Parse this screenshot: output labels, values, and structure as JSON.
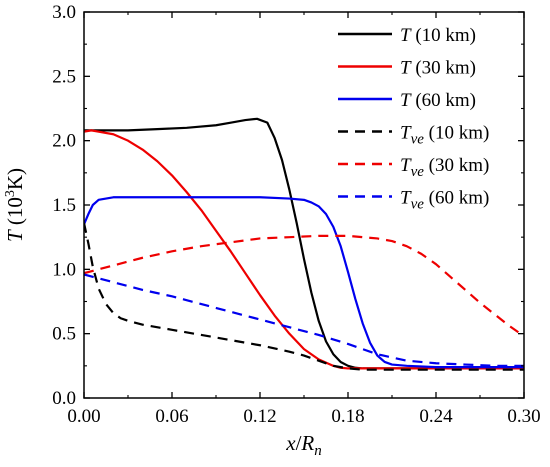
{
  "chart_data": {
    "type": "line",
    "xlabel": {
      "var": "x",
      "sep": "/",
      "den": "R",
      "den_sub": "n"
    },
    "ylabel": {
      "var": "T",
      "unit": " (10",
      "exp": "3",
      "unit_end": "K)"
    },
    "xlim": [
      0.0,
      0.3
    ],
    "ylim": [
      0.0,
      3.0
    ],
    "xticks": [
      0.0,
      0.06,
      0.12,
      0.18,
      0.24,
      0.3
    ],
    "xtick_labels": [
      "0.00",
      "0.06",
      "0.12",
      "0.18",
      "0.24",
      "0.30"
    ],
    "yticks": [
      0.0,
      0.5,
      1.0,
      1.5,
      2.0,
      2.5,
      3.0
    ],
    "ytick_labels": [
      "0.0",
      "0.5",
      "1.0",
      "1.5",
      "2.0",
      "2.5",
      "3.0"
    ],
    "grid": false,
    "legend_position": "top-right",
    "series": [
      {
        "var": "T",
        "sub": "",
        "alt": "(10 km)",
        "color": "#000000",
        "dash": "solid",
        "x": [
          0.0,
          0.01,
          0.03,
          0.05,
          0.07,
          0.09,
          0.1,
          0.11,
          0.118,
          0.125,
          0.13,
          0.135,
          0.14,
          0.145,
          0.15,
          0.155,
          0.16,
          0.165,
          0.17,
          0.175,
          0.18,
          0.185,
          0.19,
          0.2,
          0.22,
          0.25,
          0.3
        ],
        "y": [
          2.08,
          2.08,
          2.08,
          2.09,
          2.1,
          2.12,
          2.14,
          2.16,
          2.17,
          2.14,
          2.02,
          1.85,
          1.62,
          1.36,
          1.08,
          0.82,
          0.6,
          0.44,
          0.34,
          0.28,
          0.25,
          0.235,
          0.23,
          0.23,
          0.23,
          0.23,
          0.23
        ]
      },
      {
        "var": "T",
        "sub": "",
        "alt": "(30 km)",
        "color": "#ee0000",
        "dash": "solid",
        "x": [
          0.0,
          0.005,
          0.01,
          0.02,
          0.03,
          0.04,
          0.05,
          0.06,
          0.07,
          0.08,
          0.09,
          0.1,
          0.11,
          0.12,
          0.13,
          0.14,
          0.15,
          0.16,
          0.17,
          0.175,
          0.18,
          0.19,
          0.2,
          0.25,
          0.3
        ],
        "y": [
          2.07,
          2.08,
          2.07,
          2.05,
          2.0,
          1.93,
          1.84,
          1.73,
          1.6,
          1.46,
          1.3,
          1.14,
          0.97,
          0.8,
          0.64,
          0.5,
          0.38,
          0.3,
          0.25,
          0.235,
          0.23,
          0.23,
          0.23,
          0.23,
          0.23
        ]
      },
      {
        "var": "T",
        "sub": "",
        "alt": "(60 km)",
        "color": "#0000ee",
        "dash": "solid",
        "x": [
          0.0,
          0.003,
          0.006,
          0.01,
          0.015,
          0.02,
          0.03,
          0.05,
          0.08,
          0.1,
          0.12,
          0.14,
          0.15,
          0.155,
          0.16,
          0.165,
          0.17,
          0.175,
          0.18,
          0.185,
          0.19,
          0.195,
          0.2,
          0.205,
          0.21,
          0.22,
          0.24,
          0.3
        ],
        "y": [
          1.35,
          1.43,
          1.5,
          1.54,
          1.55,
          1.56,
          1.56,
          1.56,
          1.56,
          1.56,
          1.56,
          1.55,
          1.54,
          1.52,
          1.49,
          1.43,
          1.33,
          1.18,
          0.98,
          0.77,
          0.58,
          0.43,
          0.33,
          0.28,
          0.26,
          0.25,
          0.24,
          0.24
        ]
      },
      {
        "var": "T",
        "sub": "ve",
        "alt": "(10 km)",
        "color": "#000000",
        "dash": "dashed",
        "x": [
          0.0,
          0.003,
          0.006,
          0.01,
          0.015,
          0.02,
          0.025,
          0.03,
          0.04,
          0.06,
          0.08,
          0.1,
          0.12,
          0.14,
          0.15,
          0.16,
          0.17,
          0.18,
          0.19,
          0.2,
          0.25,
          0.3
        ],
        "y": [
          1.36,
          1.2,
          1.02,
          0.85,
          0.73,
          0.66,
          0.62,
          0.6,
          0.57,
          0.53,
          0.49,
          0.45,
          0.41,
          0.36,
          0.33,
          0.29,
          0.25,
          0.23,
          0.22,
          0.22,
          0.22,
          0.22
        ]
      },
      {
        "var": "T",
        "sub": "ve",
        "alt": "(30 km)",
        "color": "#ee0000",
        "dash": "dashed",
        "x": [
          0.0,
          0.02,
          0.04,
          0.06,
          0.08,
          0.1,
          0.12,
          0.14,
          0.16,
          0.18,
          0.19,
          0.2,
          0.21,
          0.22,
          0.23,
          0.24,
          0.25,
          0.26,
          0.27,
          0.28,
          0.29,
          0.3
        ],
        "y": [
          0.97,
          1.03,
          1.09,
          1.14,
          1.18,
          1.21,
          1.24,
          1.25,
          1.26,
          1.26,
          1.25,
          1.24,
          1.22,
          1.18,
          1.12,
          1.04,
          0.94,
          0.84,
          0.74,
          0.65,
          0.56,
          0.48
        ]
      },
      {
        "var": "T",
        "sub": "ve",
        "alt": "(60 km)",
        "color": "#0000ee",
        "dash": "dashed",
        "x": [
          0.0,
          0.02,
          0.04,
          0.06,
          0.08,
          0.1,
          0.12,
          0.14,
          0.16,
          0.18,
          0.2,
          0.22,
          0.24,
          0.26,
          0.28,
          0.3
        ],
        "y": [
          0.96,
          0.9,
          0.84,
          0.79,
          0.73,
          0.67,
          0.61,
          0.55,
          0.49,
          0.42,
          0.34,
          0.29,
          0.27,
          0.26,
          0.25,
          0.25
        ]
      }
    ]
  }
}
